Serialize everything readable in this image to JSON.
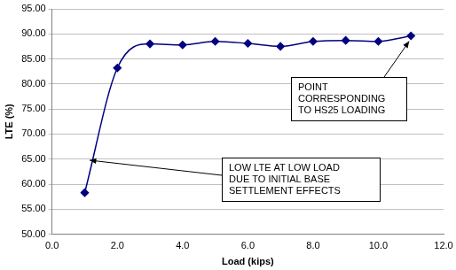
{
  "chart_data": {
    "type": "line",
    "x_label": "Load (kips)",
    "y_label": "LTE (%)",
    "x": [
      1,
      2,
      3,
      4,
      5,
      6,
      7,
      8,
      9,
      10,
      11
    ],
    "values": [
      58.3,
      83.2,
      88.0,
      87.8,
      88.5,
      88.1,
      87.5,
      88.5,
      88.7,
      88.5,
      89.6
    ],
    "color": "#000080",
    "marker": "diamond",
    "line_style": "solid",
    "xlim": [
      0,
      12
    ],
    "xticks": [
      {
        "value": 0,
        "label": "0.0"
      },
      {
        "value": 2,
        "label": "2.0"
      },
      {
        "value": 4,
        "label": "4.0"
      },
      {
        "value": 6,
        "label": "6.0"
      },
      {
        "value": 8,
        "label": "8.0"
      },
      {
        "value": 10,
        "label": "10.0"
      },
      {
        "value": 12,
        "label": "12.0"
      }
    ],
    "ylim": [
      50,
      95
    ],
    "yticks": [
      {
        "value": 50,
        "label": "50.00"
      },
      {
        "value": 55,
        "label": "55.00"
      },
      {
        "value": 60,
        "label": "60.00"
      },
      {
        "value": 65,
        "label": "65.00"
      },
      {
        "value": 70,
        "label": "70.00"
      },
      {
        "value": 75,
        "label": "75.00"
      },
      {
        "value": 80,
        "label": "80.00"
      },
      {
        "value": 85,
        "label": "85.00"
      },
      {
        "value": 90,
        "label": "90.00"
      },
      {
        "value": 95,
        "label": "95.00"
      }
    ],
    "grid": "y",
    "annotations": [
      {
        "text": [
          "LOW LTE AT LOW LOAD",
          "DUE TO INITIAL BASE",
          "SETTLEMENT EFFECTS"
        ]
      },
      {
        "text": [
          "POINT",
          "CORRESPONDING",
          "TO HS25 LOADING"
        ]
      }
    ]
  }
}
